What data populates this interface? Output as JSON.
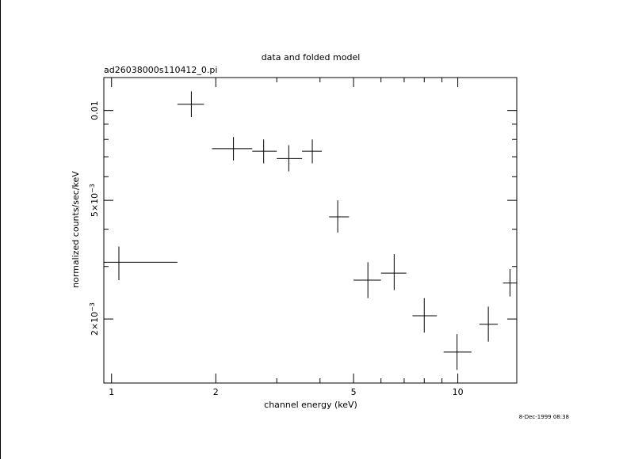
{
  "chart_data": {
    "type": "scatter",
    "title": "data and folded model",
    "subtitle": "ad26038000s110412_0.pi",
    "xlabel": "channel energy (keV)",
    "ylabel": "normalized counts/sec/keV",
    "xscale": "log",
    "yscale": "log",
    "xlim": [
      0.95,
      14.8
    ],
    "ylim": [
      0.00122,
      0.0129
    ],
    "xticks": [
      {
        "value": 1,
        "label": "1"
      },
      {
        "value": 2,
        "label": "2"
      },
      {
        "value": 5,
        "label": "5"
      },
      {
        "value": 10,
        "label": "10"
      }
    ],
    "yticks": [
      {
        "value": 0.002,
        "mantissa": "2×10",
        "exp": "−3"
      },
      {
        "value": 0.005,
        "mantissa": "5×10",
        "exp": "−3"
      },
      {
        "value": 0.01,
        "mantissa": "0.01",
        "exp": ""
      }
    ],
    "grid": false,
    "legend": "none",
    "series": [
      {
        "points": [
          {
            "x": 1.05,
            "xlo": 0.95,
            "xhi": 1.55,
            "y": 0.0031,
            "ylo": 0.0027,
            "yhi": 0.0035
          },
          {
            "x": 1.7,
            "xlo": 1.55,
            "xhi": 1.85,
            "y": 0.0105,
            "ylo": 0.0095,
            "yhi": 0.0116
          },
          {
            "x": 2.25,
            "xlo": 1.95,
            "xhi": 2.55,
            "y": 0.00745,
            "ylo": 0.0068,
            "yhi": 0.00815
          },
          {
            "x": 2.75,
            "xlo": 2.55,
            "xhi": 3.0,
            "y": 0.0073,
            "ylo": 0.00665,
            "yhi": 0.008
          },
          {
            "x": 3.25,
            "xlo": 3.0,
            "xhi": 3.55,
            "y": 0.0069,
            "ylo": 0.00625,
            "yhi": 0.00765
          },
          {
            "x": 3.8,
            "xlo": 3.55,
            "xhi": 4.05,
            "y": 0.0073,
            "ylo": 0.00665,
            "yhi": 0.008
          },
          {
            "x": 4.5,
            "xlo": 4.25,
            "xhi": 4.85,
            "y": 0.0044,
            "ylo": 0.0039,
            "yhi": 0.005
          },
          {
            "x": 5.5,
            "xlo": 5.0,
            "xhi": 6.0,
            "y": 0.0027,
            "ylo": 0.00235,
            "yhi": 0.0031
          },
          {
            "x": 6.55,
            "xlo": 6.0,
            "xhi": 7.1,
            "y": 0.00285,
            "ylo": 0.0025,
            "yhi": 0.0033
          },
          {
            "x": 8.0,
            "xlo": 7.4,
            "xhi": 8.7,
            "y": 0.00205,
            "ylo": 0.0018,
            "yhi": 0.00235
          },
          {
            "x": 9.95,
            "xlo": 9.1,
            "xhi": 10.95,
            "y": 0.00155,
            "ylo": 0.00135,
            "yhi": 0.00178
          },
          {
            "x": 12.25,
            "xlo": 11.55,
            "xhi": 13.05,
            "y": 0.00192,
            "ylo": 0.00168,
            "yhi": 0.0022
          },
          {
            "x": 14.15,
            "xlo": 13.5,
            "xhi": 14.8,
            "y": 0.00264,
            "ylo": 0.00238,
            "yhi": 0.00294
          }
        ]
      }
    ]
  },
  "timestamp": "8-Dec-1999 08:38"
}
